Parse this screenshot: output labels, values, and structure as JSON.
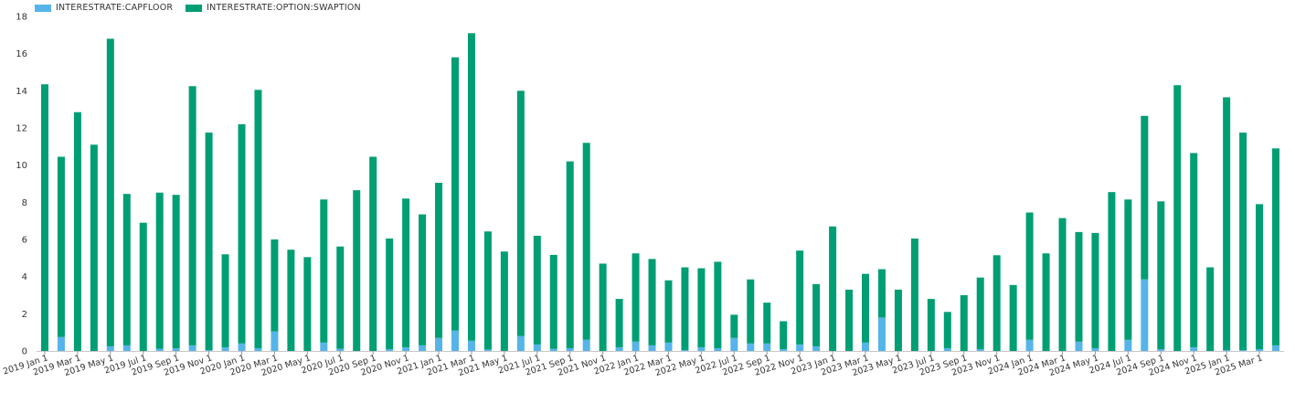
{
  "chart_data": {
    "type": "bar",
    "stacked": true,
    "ylim": [
      0,
      18
    ],
    "yticks": [
      0,
      2,
      4,
      6,
      8,
      10,
      12,
      14,
      16,
      18
    ],
    "grid": false,
    "legend_position": "top-left",
    "categories": [
      "2019-01",
      "2019-02",
      "2019-03",
      "2019-04",
      "2019-05",
      "2019-06",
      "2019-07",
      "2019-08",
      "2019-09",
      "2019-10",
      "2019-11",
      "2019-12",
      "2020-01",
      "2020-02",
      "2020-03",
      "2020-04",
      "2020-05",
      "2020-06",
      "2020-07",
      "2020-08",
      "2020-09",
      "2020-10",
      "2020-11",
      "2020-12",
      "2021-01",
      "2021-02",
      "2021-03",
      "2021-04",
      "2021-05",
      "2021-06",
      "2021-07",
      "2021-08",
      "2021-09",
      "2021-10",
      "2021-11",
      "2021-12",
      "2022-01",
      "2022-02",
      "2022-03",
      "2022-04",
      "2022-05",
      "2022-06",
      "2022-07",
      "2022-08",
      "2022-09",
      "2022-10",
      "2022-11",
      "2022-12",
      "2023-01",
      "2023-02",
      "2023-03",
      "2023-04",
      "2023-05",
      "2023-06",
      "2023-07",
      "2023-08",
      "2023-09",
      "2023-10",
      "2023-11",
      "2023-12",
      "2024-01",
      "2024-02",
      "2024-03",
      "2024-04",
      "2024-05",
      "2024-06",
      "2024-07",
      "2024-08",
      "2024-09",
      "2024-10",
      "2024-11",
      "2024-12",
      "2025-01",
      "2025-02",
      "2025-03",
      "2025-04"
    ],
    "xtick_labels": [
      {
        "index": 0,
        "label": "2019 Jan 1"
      },
      {
        "index": 2,
        "label": "2019 Mar 1"
      },
      {
        "index": 4,
        "label": "2019 May 1"
      },
      {
        "index": 6,
        "label": "2019 Jul 1"
      },
      {
        "index": 8,
        "label": "2019 Sep 1"
      },
      {
        "index": 10,
        "label": "2019 Nov 1"
      },
      {
        "index": 12,
        "label": "2020 Jan 1"
      },
      {
        "index": 14,
        "label": "2020 Mar 1"
      },
      {
        "index": 16,
        "label": "2020 May 1"
      },
      {
        "index": 18,
        "label": "2020 Jul 1"
      },
      {
        "index": 20,
        "label": "2020 Sep 1"
      },
      {
        "index": 22,
        "label": "2020 Nov 1"
      },
      {
        "index": 24,
        "label": "2021 Jan 1"
      },
      {
        "index": 26,
        "label": "2021 Mar 1"
      },
      {
        "index": 28,
        "label": "2021 May 1"
      },
      {
        "index": 30,
        "label": "2021 Jul 1"
      },
      {
        "index": 32,
        "label": "2021 Sep 1"
      },
      {
        "index": 34,
        "label": "2021 Nov 1"
      },
      {
        "index": 36,
        "label": "2022 Jan 1"
      },
      {
        "index": 38,
        "label": "2022 Mar 1"
      },
      {
        "index": 40,
        "label": "2022 May 1"
      },
      {
        "index": 42,
        "label": "2022 Jul 1"
      },
      {
        "index": 44,
        "label": "2022 Sep 1"
      },
      {
        "index": 46,
        "label": "2022 Nov 1"
      },
      {
        "index": 48,
        "label": "2023 Jan 1"
      },
      {
        "index": 50,
        "label": "2023 Mar 1"
      },
      {
        "index": 52,
        "label": "2023 May 1"
      },
      {
        "index": 54,
        "label": "2023 Jul 1"
      },
      {
        "index": 56,
        "label": "2023 Sep 1"
      },
      {
        "index": 58,
        "label": "2023 Nov 1"
      },
      {
        "index": 60,
        "label": "2024 Jan 1"
      },
      {
        "index": 62,
        "label": "2024 Mar 1"
      },
      {
        "index": 64,
        "label": "2024 May 1"
      },
      {
        "index": 66,
        "label": "2024 Jul 1"
      },
      {
        "index": 68,
        "label": "2024 Sep 1"
      },
      {
        "index": 70,
        "label": "2024 Nov 1"
      },
      {
        "index": 72,
        "label": "2025 Jan 1"
      },
      {
        "index": 74,
        "label": "2025 Mar 1"
      }
    ],
    "series": [
      {
        "name": "INTERESTRATE:CAPFLOOR",
        "color": "#56b4e9",
        "values": [
          0.0,
          0.75,
          0.0,
          0.0,
          0.25,
          0.3,
          0.0,
          0.12,
          0.15,
          0.3,
          0.05,
          0.2,
          0.4,
          0.15,
          1.05,
          0.0,
          0.0,
          0.45,
          0.12,
          0.0,
          0.0,
          0.1,
          0.2,
          0.3,
          0.7,
          1.1,
          0.55,
          0.08,
          0.0,
          0.8,
          0.35,
          0.12,
          0.15,
          0.6,
          0.0,
          0.2,
          0.5,
          0.3,
          0.45,
          0.05,
          0.2,
          0.15,
          0.7,
          0.4,
          0.4,
          0.1,
          0.35,
          0.25,
          0.0,
          0.0,
          0.45,
          1.8,
          0.0,
          0.0,
          0.0,
          0.15,
          0.0,
          0.1,
          0.0,
          0.0,
          0.6,
          0.0,
          0.0,
          0.5,
          0.15,
          0.0,
          0.6,
          3.85,
          0.1,
          0.0,
          0.2,
          0.0,
          0.05,
          0.05,
          0.1,
          0.3
        ]
      },
      {
        "name": "INTERESTRATE:OPTION:SWAPTION",
        "color": "#009e73",
        "values": [
          14.35,
          9.7,
          12.85,
          11.1,
          16.55,
          8.15,
          6.9,
          8.4,
          8.25,
          13.95,
          11.7,
          5.0,
          11.8,
          13.9,
          4.95,
          5.45,
          5.05,
          7.7,
          5.5,
          8.65,
          10.45,
          5.95,
          8.0,
          7.05,
          8.35,
          14.7,
          16.55,
          6.35,
          5.35,
          13.2,
          5.85,
          5.05,
          10.05,
          10.6,
          4.7,
          2.6,
          4.75,
          4.65,
          3.35,
          4.45,
          4.25,
          4.65,
          1.25,
          3.45,
          2.2,
          1.5,
          5.05,
          3.35,
          6.7,
          3.3,
          3.7,
          2.6,
          3.3,
          6.05,
          2.8,
          1.95,
          3.0,
          3.85,
          5.15,
          3.55,
          6.85,
          5.25,
          7.15,
          5.9,
          6.2,
          8.55,
          7.55,
          8.8,
          7.95,
          14.3,
          10.45,
          4.5,
          13.6,
          11.7,
          7.8,
          10.6
        ]
      }
    ]
  }
}
